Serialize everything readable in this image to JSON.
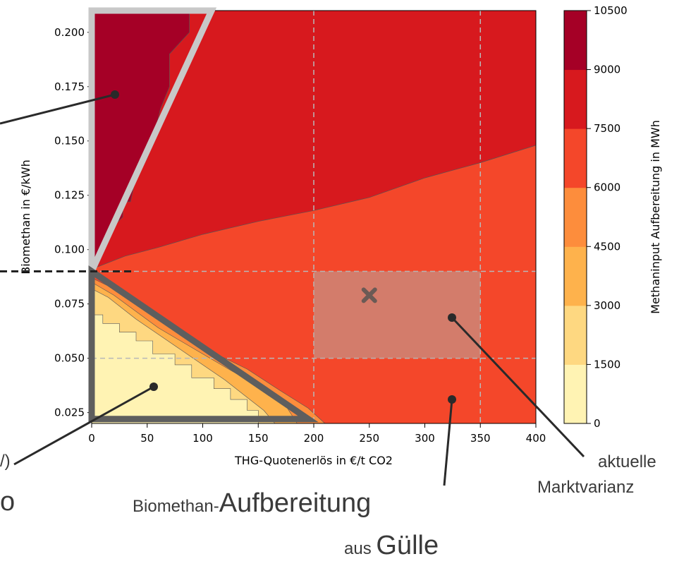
{
  "chart_data": {
    "type": "contour",
    "xlabel": "THG-Quotenerlös in €/t CO2",
    "ylabel": "Biomethan in €/kWh",
    "colorbar_label": "Methaninput Aufbereitung in MWh",
    "xlim": [
      0,
      400
    ],
    "ylim": [
      0.02,
      0.21
    ],
    "x_ticks": [
      "0",
      "50",
      "100",
      "150",
      "200",
      "250",
      "300",
      "350",
      "400"
    ],
    "y_ticks": [
      "0.025",
      "0.050",
      "0.075",
      "0.100",
      "0.125",
      "0.150",
      "0.175",
      "0.200"
    ],
    "colorbar_ticks": [
      "0",
      "1500",
      "3000",
      "4500",
      "6000",
      "7500",
      "9000",
      "10500"
    ],
    "levels": [
      {
        "from": 0,
        "to": 1500,
        "color": "#fff3b3"
      },
      {
        "from": 1500,
        "to": 3000,
        "color": "#fed881"
      },
      {
        "from": 3000,
        "to": 4500,
        "color": "#feb24c"
      },
      {
        "from": 4500,
        "to": 6000,
        "color": "#fd8d3c"
      },
      {
        "from": 6000,
        "to": 7500,
        "color": "#f4472a"
      },
      {
        "from": 7500,
        "to": 9000,
        "color": "#d7191e"
      },
      {
        "from": 9000,
        "to": 10500,
        "color": "#a50026"
      }
    ],
    "grid_x": [
      200,
      350
    ],
    "grid_y": [
      0.05,
      0.09
    ],
    "market_variance_region": {
      "x": [
        200,
        350
      ],
      "y": [
        0.05,
        0.09
      ]
    },
    "current_point": {
      "x": 250,
      "y": 0.079
    },
    "threshold_y": 0.09
  },
  "annotations": {
    "market_label_1": "aktuelle",
    "market_label_2": "Marktvarianz",
    "biomethan_prefix": "Biomethan-",
    "biomethan_word": "Aufbereitung",
    "aus_prefix": "aus ",
    "aus_word": "Gülle",
    "left_frag_1": "/)",
    "left_frag_2": "o"
  }
}
